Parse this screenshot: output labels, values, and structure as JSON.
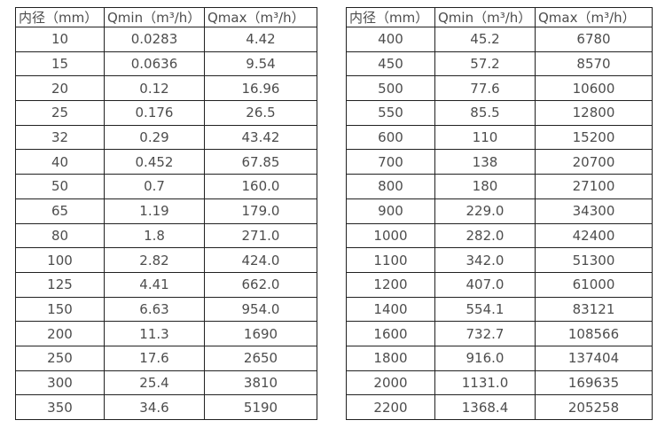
{
  "colors": {
    "background": "#ffffff",
    "table_border": "#212121",
    "table_text": "#4d4d4d"
  },
  "chart_data": [
    {
      "type": "table",
      "name": "flow-range-table-small-diameters",
      "headers": [
        "内径（mm）",
        "Qmin（m³/h）",
        "Qmax（m³/h）"
      ],
      "rows": [
        [
          "10",
          "0.0283",
          "4.42"
        ],
        [
          "15",
          "0.0636",
          "9.54"
        ],
        [
          "20",
          "0.12",
          "16.96"
        ],
        [
          "25",
          "0.176",
          "26.5"
        ],
        [
          "32",
          "0.29",
          "43.42"
        ],
        [
          "40",
          "0.452",
          "67.85"
        ],
        [
          "50",
          "0.7",
          "160.0"
        ],
        [
          "65",
          "1.19",
          "179.0"
        ],
        [
          "80",
          "1.8",
          "271.0"
        ],
        [
          "100",
          "2.82",
          "424.0"
        ],
        [
          "125",
          "4.41",
          "662.0"
        ],
        [
          "150",
          "6.63",
          "954.0"
        ],
        [
          "200",
          "11.3",
          "1690"
        ],
        [
          "250",
          "17.6",
          "2650"
        ],
        [
          "300",
          "25.4",
          "3810"
        ],
        [
          "350",
          "34.6",
          "5190"
        ]
      ]
    },
    {
      "type": "table",
      "name": "flow-range-table-large-diameters",
      "headers": [
        "内径（mm）",
        "Qmin（m³/h）",
        "Qmax（m³/h）"
      ],
      "rows": [
        [
          "400",
          "45.2",
          "6780"
        ],
        [
          "450",
          "57.2",
          "8570"
        ],
        [
          "500",
          "77.6",
          "10600"
        ],
        [
          "550",
          "85.5",
          "12800"
        ],
        [
          "600",
          "110",
          "15200"
        ],
        [
          "700",
          "138",
          "20700"
        ],
        [
          "800",
          "180",
          "27100"
        ],
        [
          "900",
          "229.0",
          "34300"
        ],
        [
          "1000",
          "282.0",
          "42400"
        ],
        [
          "1100",
          "342.0",
          "51300"
        ],
        [
          "1200",
          "407.0",
          "61000"
        ],
        [
          "1400",
          "554.1",
          "83121"
        ],
        [
          "1600",
          "732.7",
          "108566"
        ],
        [
          "1800",
          "916.0",
          "137404"
        ],
        [
          "2000",
          "1131.0",
          "169635"
        ],
        [
          "2200",
          "1368.4",
          "205258"
        ]
      ]
    }
  ]
}
